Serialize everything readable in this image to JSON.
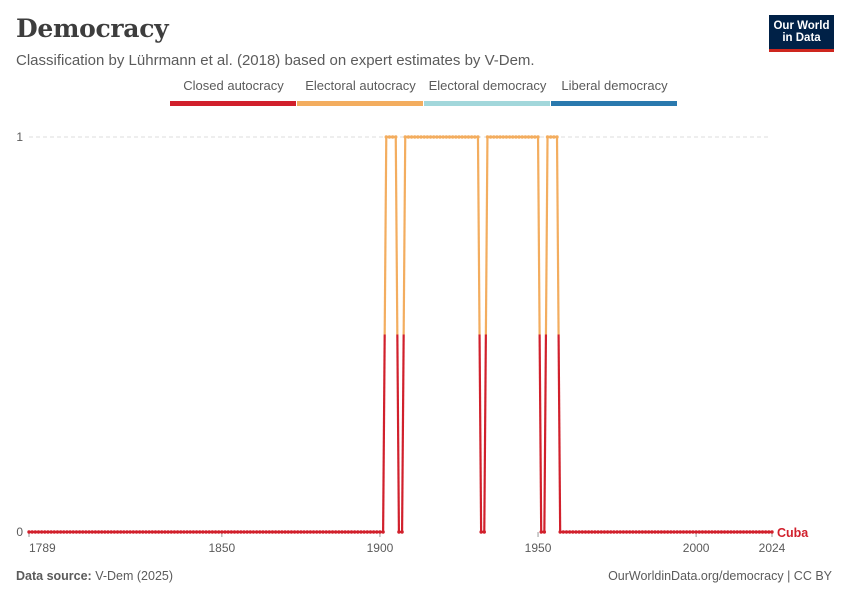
{
  "header": {
    "title": "Democracy",
    "subtitle": "Classification by Lührmann et al. (2018) based on expert estimates by V-Dem.",
    "logo_line1": "Our World",
    "logo_line2": "in Data"
  },
  "footer": {
    "source_label": "Data source:",
    "source_value": "V-Dem (2025)",
    "link": "OurWorldinData.org/democracy | CC BY"
  },
  "chart_data": {
    "type": "line",
    "title": "Democracy",
    "xlabel": "",
    "ylabel": "",
    "xlim": [
      1789,
      2024
    ],
    "ylim": [
      0,
      1
    ],
    "x_ticks": [
      "1789",
      "1850",
      "1900",
      "1950",
      "2000",
      "2024"
    ],
    "y_ticks": [
      "0",
      "1"
    ],
    "legend": [
      {
        "label": "Closed autocracy",
        "color": "#d1202c"
      },
      {
        "label": "Electoral autocracy",
        "color": "#f3ad5f"
      },
      {
        "label": "Electoral democracy",
        "color": "#a2d7db"
      },
      {
        "label": "Liberal democracy",
        "color": "#2a79ae"
      }
    ],
    "series": [
      {
        "name": "Cuba",
        "color": "#d1202c",
        "high_color": "#f3ad5f",
        "segments": [
          {
            "from": 1789,
            "to": 1901,
            "value": 0
          },
          {
            "from": 1902,
            "to": 1905,
            "value": 1
          },
          {
            "from": 1906,
            "to": 1907,
            "value": 0
          },
          {
            "from": 1908,
            "to": 1931,
            "value": 1
          },
          {
            "from": 1932,
            "to": 1933,
            "value": 0
          },
          {
            "from": 1934,
            "to": 1950,
            "value": 1
          },
          {
            "from": 1951,
            "to": 1952,
            "value": 0
          },
          {
            "from": 1953,
            "to": 1956,
            "value": 1
          },
          {
            "from": 1957,
            "to": 2024,
            "value": 0
          }
        ]
      }
    ]
  }
}
